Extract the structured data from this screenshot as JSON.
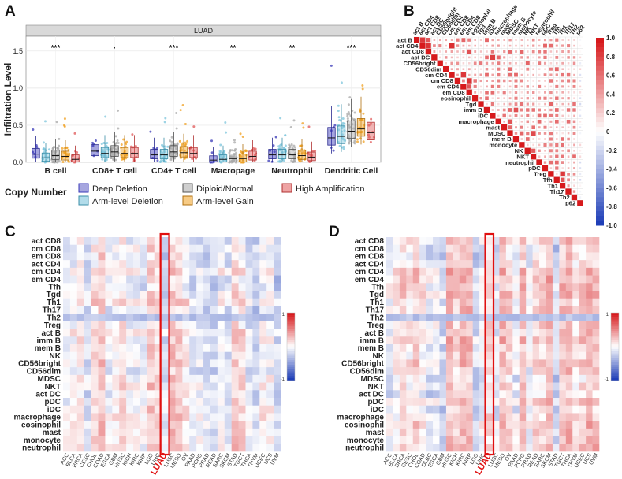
{
  "figure": {
    "panel_labels": [
      "A",
      "B",
      "C",
      "D"
    ],
    "colors": {
      "deep_deletion": "#3a3ab8",
      "arm_deletion": "#7ec5dc",
      "diploid": "#a8a8a8",
      "arm_gain": "#f0a020",
      "high_amp": "#e05858",
      "strip_bg": "#d9d9d9",
      "heat_red": "#d7191c",
      "heat_blue": "#1f3fb8",
      "highlight": "#e01010"
    }
  },
  "chart_data": [
    {
      "id": "A",
      "type": "box",
      "title": "LUAD",
      "ylabel": "Infiltration Level",
      "ylim": [
        0,
        1.7
      ],
      "yticks": [
        "0.0",
        "0.5",
        "1.0",
        "1.5"
      ],
      "categories": [
        "B cell",
        "CD8+ T cell",
        "CD4+ T cell",
        "Macropage",
        "Neutrophil",
        "Dendritic Cell"
      ],
      "significance": [
        "***",
        "·",
        "***",
        "**",
        "**",
        "***"
      ],
      "series": [
        {
          "name": "Deep Deletion",
          "medians": [
            0.11,
            0.15,
            0.1,
            0.03,
            0.1,
            0.33
          ]
        },
        {
          "name": "Arm-level Deletion",
          "medians": [
            0.06,
            0.12,
            0.1,
            0.04,
            0.1,
            0.35
          ]
        },
        {
          "name": "Diploid/Normal",
          "medians": [
            0.09,
            0.14,
            0.14,
            0.05,
            0.1,
            0.42
          ]
        },
        {
          "name": "Arm-level Gain",
          "medians": [
            0.08,
            0.12,
            0.13,
            0.05,
            0.09,
            0.45
          ]
        },
        {
          "name": "High Amplification",
          "medians": [
            0.04,
            0.12,
            0.12,
            0.08,
            0.07,
            0.4
          ]
        }
      ],
      "legend_title": "Copy Number",
      "legend": [
        "Deep Deletion",
        "Arm-level Deletion",
        "Diploid/Normal",
        "Arm-level Gain",
        "High Amplification"
      ]
    },
    {
      "id": "B",
      "type": "heatmap",
      "shape": "upper-triangle correlation",
      "labels": [
        "act B",
        "act CD4",
        "act CD8",
        "act DC",
        "CD56bright",
        "CD56dim",
        "cm CD4",
        "cm CD8",
        "em CD4",
        "em CD8",
        "eosinophil",
        "Tgd",
        "imm B",
        "iDC",
        "macrophage",
        "mast",
        "MDSC",
        "mem B",
        "monocyte",
        "NK",
        "NKT",
        "neutrophil",
        "pDC",
        "Treg",
        "Tfh",
        "Th1",
        "Th17",
        "Th2",
        "p62"
      ],
      "scale_ticks": [
        "1.0",
        "0.8",
        "0.6",
        "0.4",
        "0.2",
        "0",
        "-0.2",
        "-0.4",
        "-0.6",
        "-0.8",
        "-1.0"
      ]
    },
    {
      "id": "C",
      "type": "heatmap",
      "rows": [
        "act CD8",
        "cm CD8",
        "em CD8",
        "act CD4",
        "cm CD4",
        "em CD4",
        "Tfh",
        "Tgd",
        "Th1",
        "Th17",
        "Th2",
        "Treg",
        "act B",
        "imm B",
        "mem B",
        "NK",
        "CD56bright",
        "CD56dim",
        "MDSC",
        "NKT",
        "act DC",
        "pDC",
        "iDC",
        "macrophage",
        "eosinophil",
        "mast",
        "monocyte",
        "neutrophil"
      ],
      "columns": [
        "ACC",
        "BLCA",
        "BRCA",
        "CESC",
        "CHOL",
        "COAD",
        "ESCA",
        "GBM",
        "HNSC",
        "KICH",
        "KIRC",
        "KIRP",
        "LGG",
        "LIHC",
        "LUAD",
        "LUSC",
        "MESO",
        "OV",
        "PAAD",
        "PCPG",
        "PRAD",
        "READ",
        "SARC",
        "SKCM",
        "STAD",
        "TGCT",
        "THCA",
        "THYM",
        "UCEC",
        "UCS",
        "UVM"
      ],
      "highlight": "LUAD",
      "scale_ticks": [
        "1",
        "-1"
      ]
    },
    {
      "id": "D",
      "type": "heatmap",
      "rows": [
        "act CD8",
        "cm CD8",
        "em CD8",
        "act CD4",
        "cm CD4",
        "em CD4",
        "Tfh",
        "Tgd",
        "Th1",
        "Th17",
        "Th2",
        "Treg",
        "act B",
        "imm B",
        "mem B",
        "NK",
        "CD56bright",
        "CD56dim",
        "MDSC",
        "NKT",
        "act DC",
        "pDC",
        "iDC",
        "macrophage",
        "eosinophil",
        "mast",
        "monocyte",
        "neutrophil"
      ],
      "columns": [
        "ACC",
        "BLCA",
        "BRCA",
        "CESC",
        "CHOL",
        "COAD",
        "DLBC",
        "ESCA",
        "GBM",
        "HNSC",
        "KICH",
        "KIRC",
        "KIRP",
        "LGG",
        "LIHC",
        "LUAD",
        "LUSC",
        "MESO",
        "OV",
        "PAAD",
        "PCPG",
        "PRAD",
        "READ",
        "SARC",
        "SKCM",
        "STAD",
        "TGCT",
        "THCA",
        "THYM",
        "UCEC",
        "UCS",
        "UVM"
      ],
      "highlight": "LUAD",
      "scale_ticks": [
        "1",
        "-1"
      ]
    }
  ]
}
